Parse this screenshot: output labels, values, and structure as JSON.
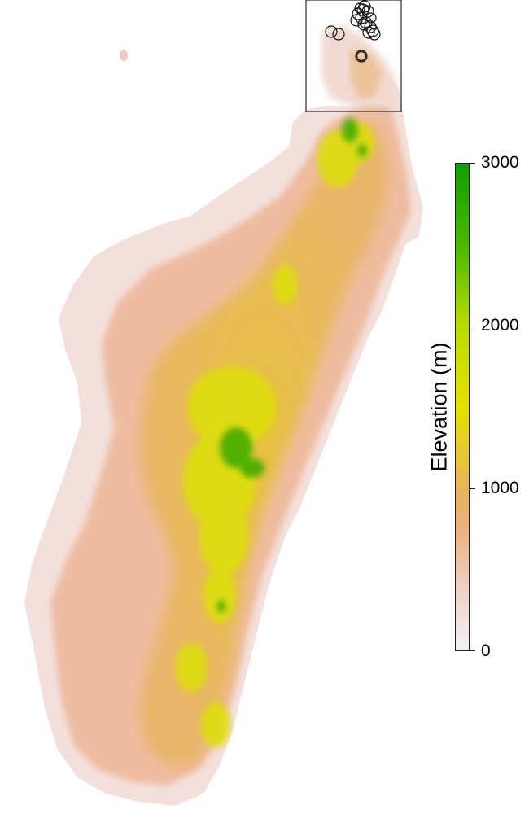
{
  "legend": {
    "title": "Elevation (m)",
    "ticks": [
      {
        "label": "3000",
        "value": 3000
      },
      {
        "label": "2000",
        "value": 2000
      },
      {
        "label": "1000",
        "value": 1000
      },
      {
        "label": "0",
        "value": 0
      }
    ],
    "min": 0,
    "max": 3000,
    "colors": [
      "#f2f2f2",
      "#eeaf80",
      "#e8b45a",
      "#e6e100",
      "#4ab900",
      "#109f00"
    ]
  },
  "inset_box": {
    "label": ""
  }
}
